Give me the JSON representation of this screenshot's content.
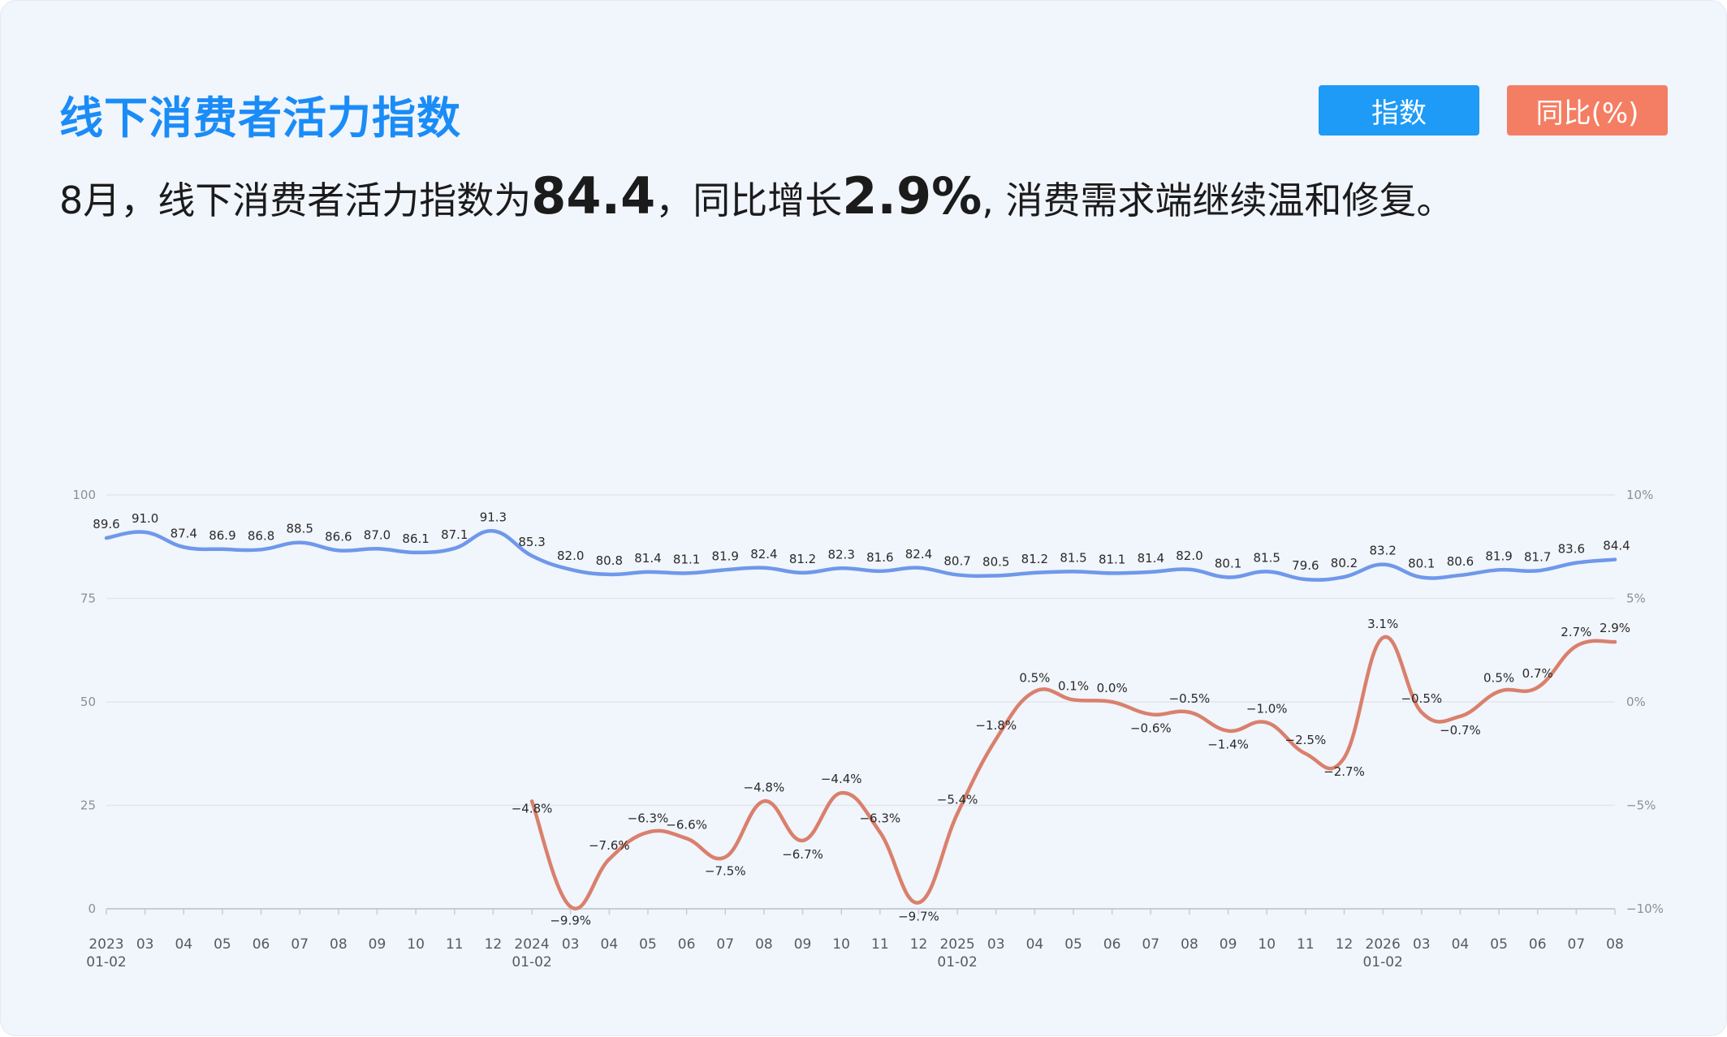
{
  "header": {
    "title": "线下消费者活力指数",
    "btn_index": "指数",
    "btn_yoy": "同比(%)"
  },
  "summary": {
    "part1": "8月，线下消费者活力指数为",
    "value": "84.4",
    "part2": "，同比增长",
    "yoy": "2.9%",
    "part3": ", 消费需求端继续温和修复。"
  },
  "colors": {
    "index_line": "#6f98ea",
    "yoy_line": "#d9806c",
    "title": "#1a8cf7"
  },
  "chart_data": {
    "type": "line",
    "x_labels": [
      [
        "2023",
        "01-02"
      ],
      [
        "03",
        ""
      ],
      [
        "04",
        ""
      ],
      [
        "05",
        ""
      ],
      [
        "06",
        ""
      ],
      [
        "07",
        ""
      ],
      [
        "08",
        ""
      ],
      [
        "09",
        ""
      ],
      [
        "10",
        ""
      ],
      [
        "11",
        ""
      ],
      [
        "12",
        ""
      ],
      [
        "2024",
        "01-02"
      ],
      [
        "03",
        ""
      ],
      [
        "04",
        ""
      ],
      [
        "05",
        ""
      ],
      [
        "06",
        ""
      ],
      [
        "07",
        ""
      ],
      [
        "08",
        ""
      ],
      [
        "09",
        ""
      ],
      [
        "10",
        ""
      ],
      [
        "11",
        ""
      ],
      [
        "12",
        ""
      ],
      [
        "2025",
        "01-02"
      ],
      [
        "03",
        ""
      ],
      [
        "04",
        ""
      ],
      [
        "05",
        ""
      ],
      [
        "06",
        ""
      ],
      [
        "07",
        ""
      ],
      [
        "08",
        ""
      ],
      [
        "09",
        ""
      ],
      [
        "10",
        ""
      ],
      [
        "11",
        ""
      ],
      [
        "12",
        ""
      ],
      [
        "2026",
        "01-02"
      ],
      [
        "03",
        ""
      ],
      [
        "04",
        ""
      ],
      [
        "05",
        ""
      ],
      [
        "06",
        ""
      ],
      [
        "07",
        ""
      ],
      [
        "08",
        ""
      ]
    ],
    "left_axis": {
      "ticks": [
        "100",
        "75",
        "50",
        "25",
        "0"
      ],
      "ylim": [
        0,
        100
      ]
    },
    "right_axis": {
      "ticks": [
        "10%",
        "5%",
        "0%",
        "−5%",
        "−10%"
      ],
      "ylim": [
        -10,
        10
      ]
    },
    "series": [
      {
        "axis": "left",
        "values": [
          89.6,
          91.0,
          87.4,
          86.9,
          86.8,
          88.5,
          86.6,
          87.0,
          86.1,
          87.1,
          91.3,
          85.3,
          82.0,
          80.8,
          81.4,
          81.1,
          81.9,
          82.4,
          81.2,
          82.3,
          81.6,
          82.4,
          80.7,
          80.5,
          81.2,
          81.5,
          81.1,
          81.4,
          82.0,
          80.1,
          81.5,
          79.6,
          80.2,
          83.2,
          80.1,
          80.6,
          81.9,
          81.7,
          83.6,
          84.4
        ],
        "labels": [
          "89.6",
          "91.0",
          "87.4",
          "86.9",
          "86.8",
          "88.5",
          "86.6",
          "87.0",
          "86.1",
          "87.1",
          "91.3",
          "85.3",
          "82.0",
          "80.8",
          "81.4",
          "81.1",
          "81.9",
          "82.4",
          "81.2",
          "82.3",
          "81.6",
          "82.4",
          "80.7",
          "80.5",
          "81.2",
          "81.5",
          "81.1",
          "81.4",
          "82.0",
          "80.1",
          "81.5",
          "79.6",
          "80.2",
          "83.2",
          "80.1",
          "80.6",
          "81.9",
          "81.7",
          "83.6",
          "84.4"
        ]
      },
      {
        "axis": "right",
        "start_index": 11,
        "values": [
          -4.8,
          -9.9,
          -7.6,
          -6.3,
          -6.6,
          -7.5,
          -4.8,
          -6.7,
          -4.4,
          -6.3,
          -9.7,
          -5.4,
          -1.8,
          0.5,
          0.1,
          0.0,
          -0.6,
          -0.5,
          -1.4,
          -1.0,
          -2.5,
          -2.7,
          3.1,
          -0.5,
          -0.7,
          0.5,
          0.7,
          2.7,
          2.9
        ],
        "labels": [
          "−4.8%",
          "−9.9%",
          "−7.6%",
          "−6.3%",
          "−6.6%",
          "−7.5%",
          "−4.8%",
          "−6.7%",
          "−4.4%",
          "−6.3%",
          "−9.7%",
          "−5.4%",
          "−1.8%",
          "0.5%",
          "0.1%",
          "0.0%",
          "−0.6%",
          "−0.5%",
          "−1.4%",
          "−1.0%",
          "−2.5%",
          "−2.7%",
          "3.1%",
          "−0.5%",
          "−0.7%",
          "0.5%",
          "0.7%",
          "2.7%",
          "2.9%"
        ]
      }
    ],
    "grid": true,
    "legend": "top-right"
  }
}
